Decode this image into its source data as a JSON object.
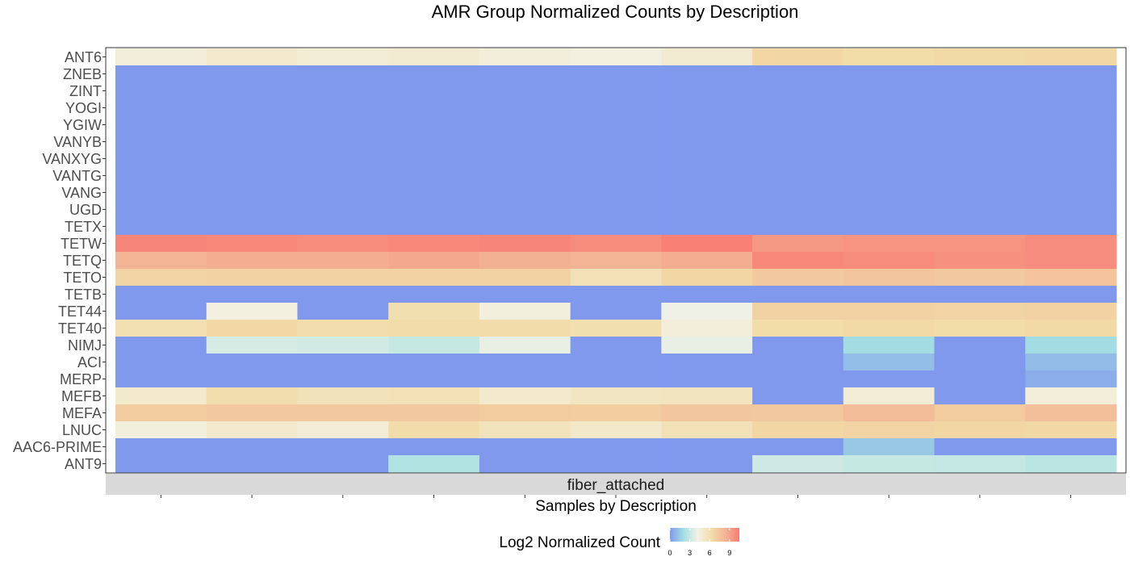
{
  "chart_data": {
    "type": "heatmap",
    "title": "AMR Group Normalized Counts by Description",
    "xlabel": "Samples by Description",
    "ylabel": "",
    "facet": "fiber_attached",
    "legend": {
      "title": "Log2 Normalized Count",
      "ticks": [
        0,
        3,
        6,
        9
      ],
      "range": [
        0,
        10.5
      ],
      "placement": "bottom",
      "colors": [
        "#8099ed",
        "#a5e0e1",
        "#f3f2e6",
        "#f2dca7",
        "#f3b495",
        "#f87a72"
      ]
    },
    "num_samples": 11,
    "rows": [
      "ANT6",
      "ZNEB",
      "ZINT",
      "YOGI",
      "YGIW",
      "VANYB",
      "VANXYG",
      "VANTG",
      "VANG",
      "UGD",
      "TETX",
      "TETW",
      "TETQ",
      "TETO",
      "TETB",
      "TET44",
      "TET40",
      "NIMJ",
      "ACI",
      "MERP",
      "MEFB",
      "MEFA",
      "LNUC",
      "AAC6-PRIME",
      "ANT9"
    ],
    "values": [
      [
        4.6,
        5.0,
        4.8,
        4.9,
        4.6,
        4.4,
        4.9,
        6.6,
        6.3,
        6.4,
        6.5
      ],
      [
        0,
        0,
        0,
        0,
        0,
        0,
        0,
        0,
        0,
        0,
        0
      ],
      [
        0,
        0,
        0,
        0,
        0,
        0,
        0,
        0,
        0,
        0,
        0
      ],
      [
        0,
        0,
        0,
        0,
        0,
        0,
        0,
        0,
        0,
        0,
        0
      ],
      [
        0,
        0,
        0,
        0,
        0,
        0,
        0,
        0,
        0,
        0,
        0
      ],
      [
        0,
        0,
        0,
        0,
        0,
        0,
        0,
        0,
        0,
        0,
        0
      ],
      [
        0,
        0,
        0,
        0,
        0,
        0,
        0,
        0,
        0,
        0,
        0
      ],
      [
        0,
        0,
        0,
        0,
        0,
        0,
        0,
        0,
        0,
        0,
        0
      ],
      [
        0,
        0,
        0,
        0,
        0,
        0,
        0,
        0,
        0,
        0,
        0
      ],
      [
        0,
        0,
        0,
        0,
        0,
        0,
        0,
        0,
        0,
        0,
        0
      ],
      [
        0,
        0,
        0,
        0,
        0,
        0,
        0,
        0,
        0,
        0,
        0
      ],
      [
        10.1,
        10.0,
        9.9,
        10.0,
        10.1,
        9.9,
        10.3,
        9.4,
        9.6,
        9.6,
        9.8
      ],
      [
        8.4,
        8.6,
        8.6,
        8.8,
        8.5,
        8.4,
        8.6,
        10.0,
        9.9,
        9.7,
        9.8
      ],
      [
        6.7,
        6.9,
        6.8,
        6.9,
        6.9,
        5.8,
        6.6,
        7.3,
        7.5,
        7.3,
        7.6
      ],
      [
        0,
        0,
        0,
        0,
        0,
        0,
        0,
        0,
        0,
        0,
        0
      ],
      [
        0,
        4.4,
        0,
        6.0,
        4.5,
        0,
        4.1,
        6.9,
        6.8,
        6.7,
        6.8
      ],
      [
        5.9,
        6.5,
        6.1,
        6.2,
        6.2,
        6.0,
        4.6,
        6.3,
        6.4,
        6.3,
        6.4
      ],
      [
        0,
        3.4,
        3.3,
        3.0,
        3.9,
        0,
        3.9,
        0,
        2.0,
        0,
        2.0
      ],
      [
        0,
        0,
        0,
        0,
        0,
        0,
        0,
        0,
        1.1,
        0,
        1.0
      ],
      [
        0,
        0,
        0,
        0,
        0,
        0,
        0,
        0,
        0,
        0,
        0.6
      ],
      [
        5.0,
        6.1,
        5.7,
        5.8,
        5.0,
        5.4,
        5.5,
        0,
        4.8,
        0,
        4.6
      ],
      [
        7.2,
        7.3,
        7.3,
        7.3,
        7.2,
        7.1,
        7.4,
        7.3,
        8.0,
        7.2,
        7.8
      ],
      [
        4.5,
        5.0,
        4.7,
        6.2,
        5.6,
        5.2,
        5.8,
        6.6,
        6.7,
        6.6,
        6.5
      ],
      [
        0,
        0,
        0,
        0,
        0,
        0,
        0,
        0,
        1.4,
        0,
        0
      ],
      [
        0,
        0,
        0,
        2.4,
        0,
        0,
        0,
        3.2,
        3.0,
        2.9,
        2.7
      ]
    ]
  }
}
